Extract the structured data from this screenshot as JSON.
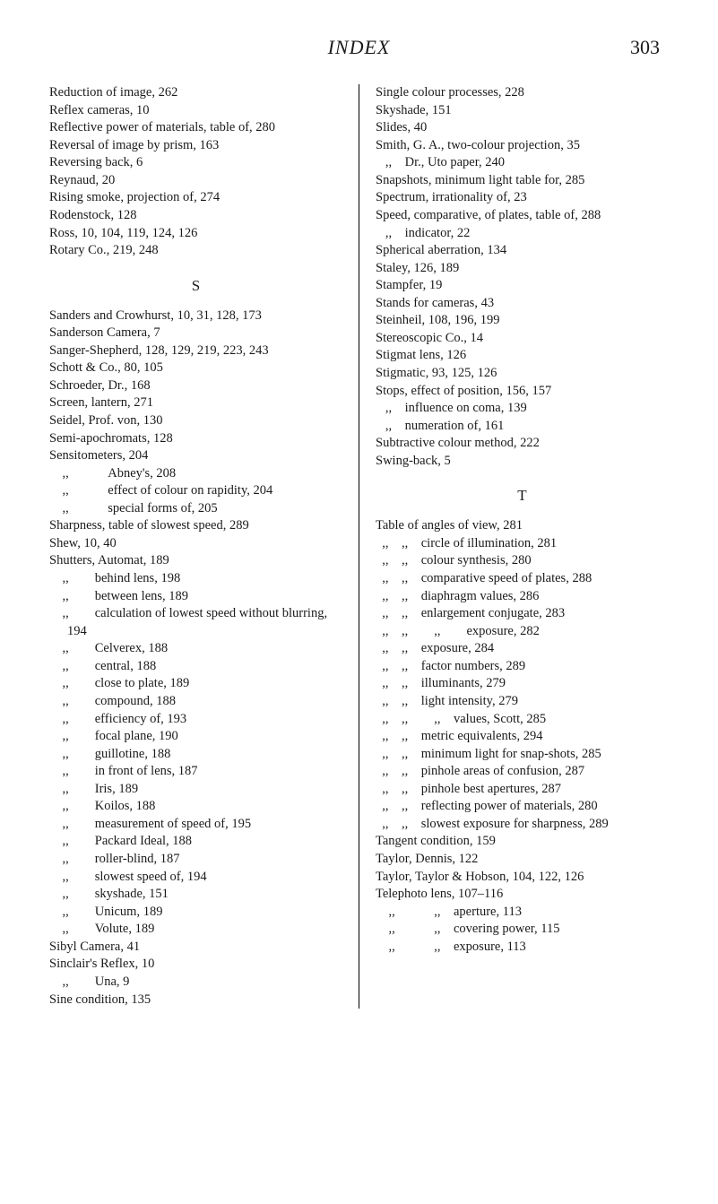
{
  "header": {
    "title": "INDEX",
    "page_number": "303"
  },
  "left_column": {
    "block1": [
      "Reduction of image, 262",
      "Reflex cameras, 10",
      "Reflective power of materials, table of, 280",
      "Reversal of image by prism, 163",
      "Reversing back, 6",
      "Reynaud, 20",
      "Rising smoke, projection of, 274",
      "Rodenstock, 128",
      "Ross, 10, 104, 119, 124, 126",
      "Rotary Co., 219, 248"
    ],
    "section_letter": "S",
    "block2": [
      "Sanders and Crowhurst, 10, 31, 128, 173",
      "Sanderson Camera, 7",
      "Sanger-Shepherd, 128, 129, 219, 223, 243",
      "Schott & Co., 80, 105",
      "Schroeder, Dr., 168",
      "Screen, lantern, 271",
      "Seidel, Prof. von, 130",
      "Semi-apochromats, 128",
      "Sensitometers, 204",
      "    ,,   Abney's, 208",
      "    ,,   effect of colour on rapidity, 204",
      "    ,,   special forms of, 205",
      "Sharpness, table of slowest speed, 289",
      "Shew, 10, 40",
      "Shutters, Automat, 189",
      "    ,,  behind lens, 198",
      "    ,,  between lens, 189",
      "    ,,  calculation of lowest speed without blurring, 194",
      "    ,,  Celverex, 188",
      "    ,,  central, 188",
      "    ,,  close to plate, 189",
      "    ,,  compound, 188",
      "    ,,  efficiency of, 193",
      "    ,,  focal plane, 190",
      "    ,,  guillotine, 188",
      "    ,,  in front of lens, 187",
      "    ,,  Iris, 189",
      "    ,,  Koilos, 188",
      "    ,,  measurement of speed of, 195",
      "    ,,  Packard Ideal, 188",
      "    ,,  roller-blind, 187",
      "    ,,  slowest speed of, 194",
      "    ,,  skyshade, 151",
      "    ,,  Unicum, 189",
      "    ,,  Volute, 189",
      "Sibyl Camera, 41",
      "Sinclair's Reflex, 10",
      "    ,,  Una, 9",
      "Sine condition, 135"
    ]
  },
  "right_column": {
    "block1": [
      "Single colour processes, 228",
      "Skyshade, 151",
      "Slides, 40",
      "Smith, G. A., two-colour projection, 35",
      "   ,, Dr., Uto paper, 240",
      "Snapshots, minimum light table for, 285",
      "Spectrum, irrationality of, 23",
      "Speed, comparative, of plates, table of, 288",
      "   ,, indicator, 22",
      "Spherical aberration, 134",
      "Staley, 126, 189",
      "Stampfer, 19",
      "Stands for cameras, 43",
      "Steinheil, 108, 196, 199",
      "Stereoscopic Co., 14",
      "Stigmat lens, 126",
      "Stigmatic, 93, 125, 126",
      "Stops, effect of position, 156, 157",
      "   ,, influence on coma, 139",
      "   ,, numeration of, 161",
      "Subtractive colour method, 222",
      "Swing-back, 5"
    ],
    "section_letter": "T",
    "block2": [
      "Table of angles of view, 281",
      "  ,, ,, circle of illumination, 281",
      "  ,, ,, colour synthesis, 280",
      "  ,, ,, comparative speed of plates, 288",
      "  ,, ,, diaphragm values, 286",
      "  ,, ,, enlargement conjugate, 283",
      "  ,, ,,  ,,  exposure, 282",
      "  ,, ,, exposure, 284",
      "  ,, ,, factor numbers, 289",
      "  ,, ,, illuminants, 279",
      "  ,, ,, light intensity, 279",
      "  ,, ,,  ,, values, Scott, 285",
      "  ,, ,, metric equivalents, 294",
      "  ,, ,, minimum light for snap-shots, 285",
      "  ,, ,, pinhole areas of confusion, 287",
      "  ,, ,, pinhole best apertures, 287",
      "  ,, ,, reflecting power of materials, 280",
      "  ,, ,, slowest exposure for sharpness, 289",
      "Tangent condition, 159",
      "Taylor, Dennis, 122",
      "Taylor, Taylor & Hobson, 104, 122, 126",
      "Telephoto lens, 107–116",
      "    ,,   ,, aperture, 113",
      "    ,,   ,, covering power, 115",
      "    ,,   ,, exposure, 113"
    ]
  }
}
